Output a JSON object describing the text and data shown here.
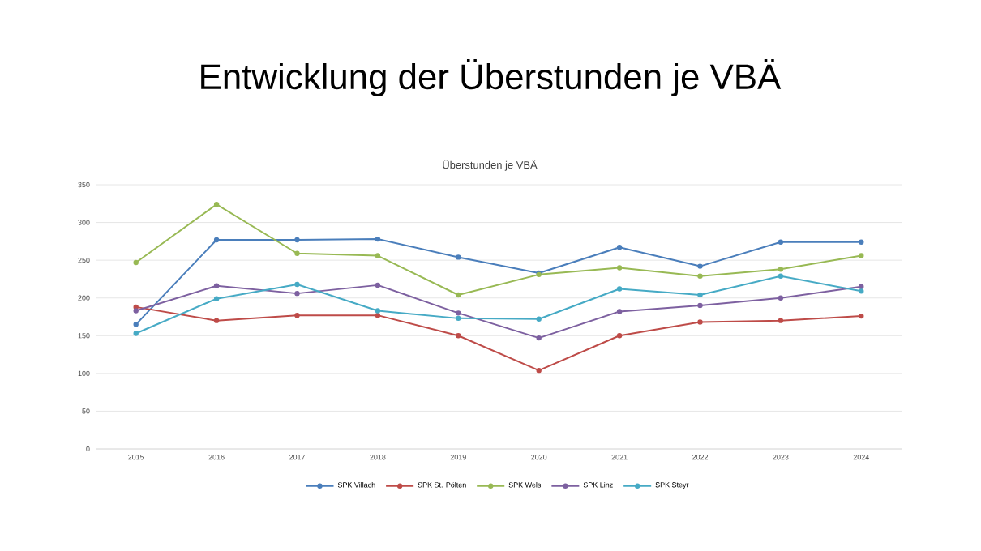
{
  "chart_data": {
    "type": "line",
    "title": "Entwicklung der Überstunden je VBÄ",
    "subtitle": "Überstunden je VBÄ",
    "categories": [
      "2015",
      "2016",
      "2017",
      "2018",
      "2019",
      "2020",
      "2021",
      "2022",
      "2023",
      "2024"
    ],
    "series": [
      {
        "name": "SPK Villach",
        "color": "#4a7ebb",
        "values": [
          165,
          277,
          277,
          278,
          254,
          233,
          267,
          242,
          274,
          274
        ]
      },
      {
        "name": "SPK St. Pölten",
        "color": "#be4b48",
        "values": [
          188,
          170,
          177,
          177,
          150,
          104,
          150,
          168,
          170,
          176
        ]
      },
      {
        "name": "SPK Wels",
        "color": "#98b954",
        "values": [
          247,
          324,
          259,
          256,
          204,
          231,
          240,
          229,
          238,
          256
        ]
      },
      {
        "name": "SPK Linz",
        "color": "#7d60a0",
        "values": [
          183,
          216,
          206,
          217,
          180,
          147,
          182,
          190,
          200,
          215
        ]
      },
      {
        "name": "SPK Steyr",
        "color": "#46aac5",
        "values": [
          153,
          199,
          218,
          183,
          173,
          172,
          212,
          204,
          229,
          209
        ]
      }
    ],
    "ylim": [
      0,
      350
    ],
    "yticks": [
      0,
      50,
      100,
      150,
      200,
      250,
      300,
      350
    ],
    "grid": "y",
    "legend": "bottom",
    "marker": "circle",
    "line_style": "solid"
  }
}
